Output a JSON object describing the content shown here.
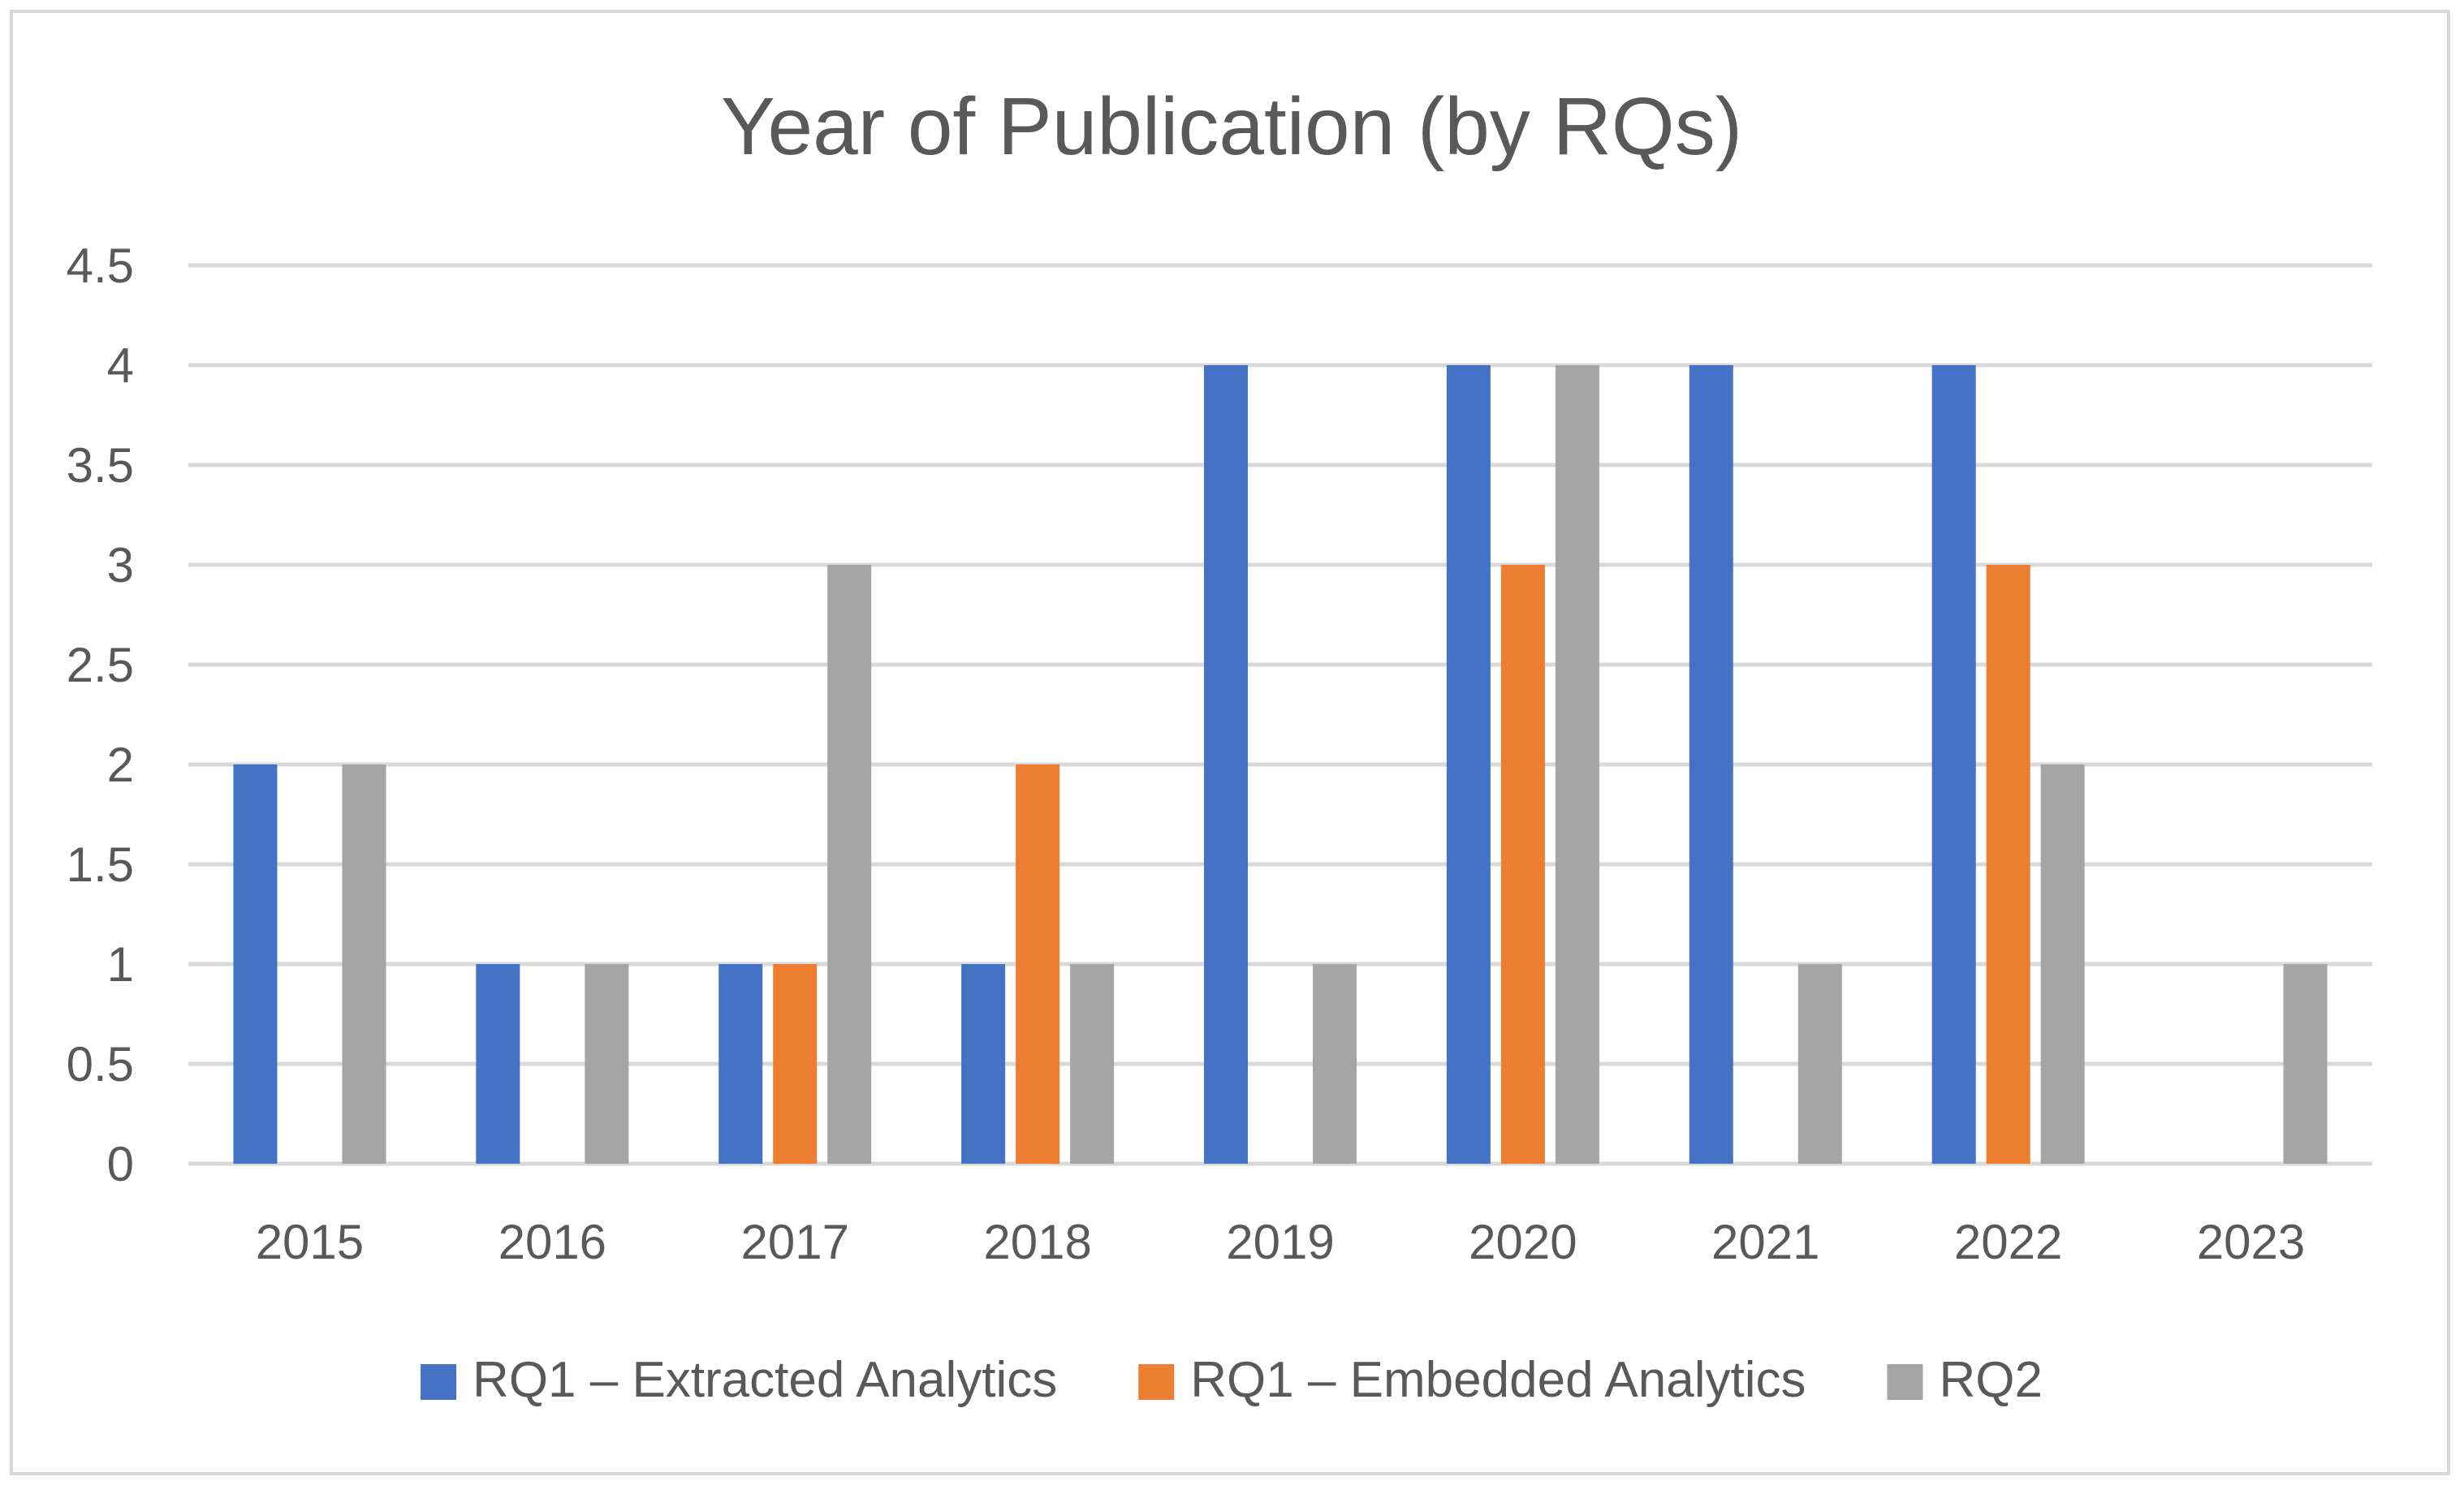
{
  "chart_data": {
    "type": "bar",
    "title": "Year of Publication (by RQs)",
    "xlabel": "",
    "ylabel": "",
    "categories": [
      "2015",
      "2016",
      "2017",
      "2018",
      "2019",
      "2020",
      "2021",
      "2022",
      "2023"
    ],
    "series": [
      {
        "name": "RQ1 – Extracted Analytics",
        "color": "#4472C4",
        "values": [
          2,
          1,
          1,
          1,
          4,
          4,
          4,
          4,
          0
        ]
      },
      {
        "name": "RQ1 – Embedded Analytics",
        "color": "#ED7D31",
        "values": [
          0,
          0,
          1,
          2,
          0,
          3,
          0,
          3,
          0
        ]
      },
      {
        "name": "RQ2",
        "color": "#A5A5A5",
        "values": [
          2,
          1,
          3,
          1,
          1,
          4,
          1,
          2,
          1
        ]
      }
    ],
    "ylim": [
      0,
      4.5
    ],
    "yticks": [
      "0",
      "0.5",
      "1",
      "1.5",
      "2",
      "2.5",
      "3",
      "3.5",
      "4",
      "4.5"
    ],
    "grid": true,
    "legend_position": "bottom"
  }
}
